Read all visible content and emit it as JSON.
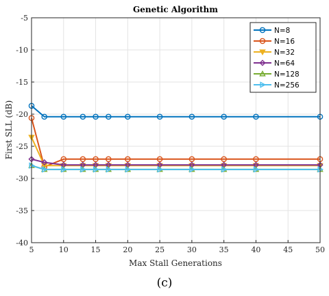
{
  "caption": "(c)",
  "chart_data": {
    "type": "line",
    "title": "Genetic Algorithm",
    "xlabel": "Max Stall Generations",
    "ylabel": "First SLL (dB)",
    "xlim": [
      5,
      50
    ],
    "ylim": [
      -40,
      -5
    ],
    "xticks": [
      5,
      10,
      15,
      20,
      25,
      30,
      35,
      40,
      45,
      50
    ],
    "yticks": [
      -40,
      -35,
      -30,
      -25,
      -20,
      -15,
      -10,
      -5
    ],
    "grid": true,
    "legend_position": "top-right",
    "x": [
      5,
      7,
      10,
      13,
      15,
      17,
      20,
      25,
      30,
      35,
      40,
      50
    ],
    "series": [
      {
        "name": "N=8",
        "color": "#0072BD",
        "marker": "circle",
        "values": [
          -18.7,
          -20.4,
          -20.4,
          -20.4,
          -20.4,
          -20.4,
          -20.4,
          -20.4,
          -20.4,
          -20.4,
          -20.4,
          -20.4
        ]
      },
      {
        "name": "N=16",
        "color": "#D95319",
        "marker": "circle",
        "values": [
          -20.6,
          -28.2,
          -27.0,
          -27.0,
          -27.0,
          -27.0,
          -27.0,
          -27.0,
          -27.0,
          -27.0,
          -27.0,
          -27.0
        ]
      },
      {
        "name": "N=32",
        "color": "#EDB120",
        "marker": "triangle-down",
        "values": [
          -23.6,
          -28.0,
          -28.0,
          -28.0,
          -28.0,
          -28.0,
          -28.0,
          -28.0,
          -28.0,
          -28.0,
          -28.0,
          -28.0
        ]
      },
      {
        "name": "N=64",
        "color": "#7E2F8E",
        "marker": "diamond",
        "values": [
          -27.0,
          -27.5,
          -27.9,
          -27.9,
          -27.9,
          -27.9,
          -27.9,
          -27.9,
          -27.9,
          -27.9,
          -27.9,
          -27.9
        ]
      },
      {
        "name": "N=128",
        "color": "#77AC30",
        "marker": "triangle-up",
        "values": [
          -28.0,
          -28.6,
          -28.6,
          -28.6,
          -28.6,
          -28.6,
          -28.6,
          -28.6,
          -28.6,
          -28.6,
          -28.6,
          -28.6
        ]
      },
      {
        "name": "N=256",
        "color": "#4DBEEE",
        "marker": "triangle-right",
        "values": [
          -28.0,
          -28.6,
          -28.6,
          -28.6,
          -28.6,
          -28.6,
          -28.6,
          -28.6,
          -28.6,
          -28.6,
          -28.6,
          -28.6
        ]
      }
    ]
  }
}
